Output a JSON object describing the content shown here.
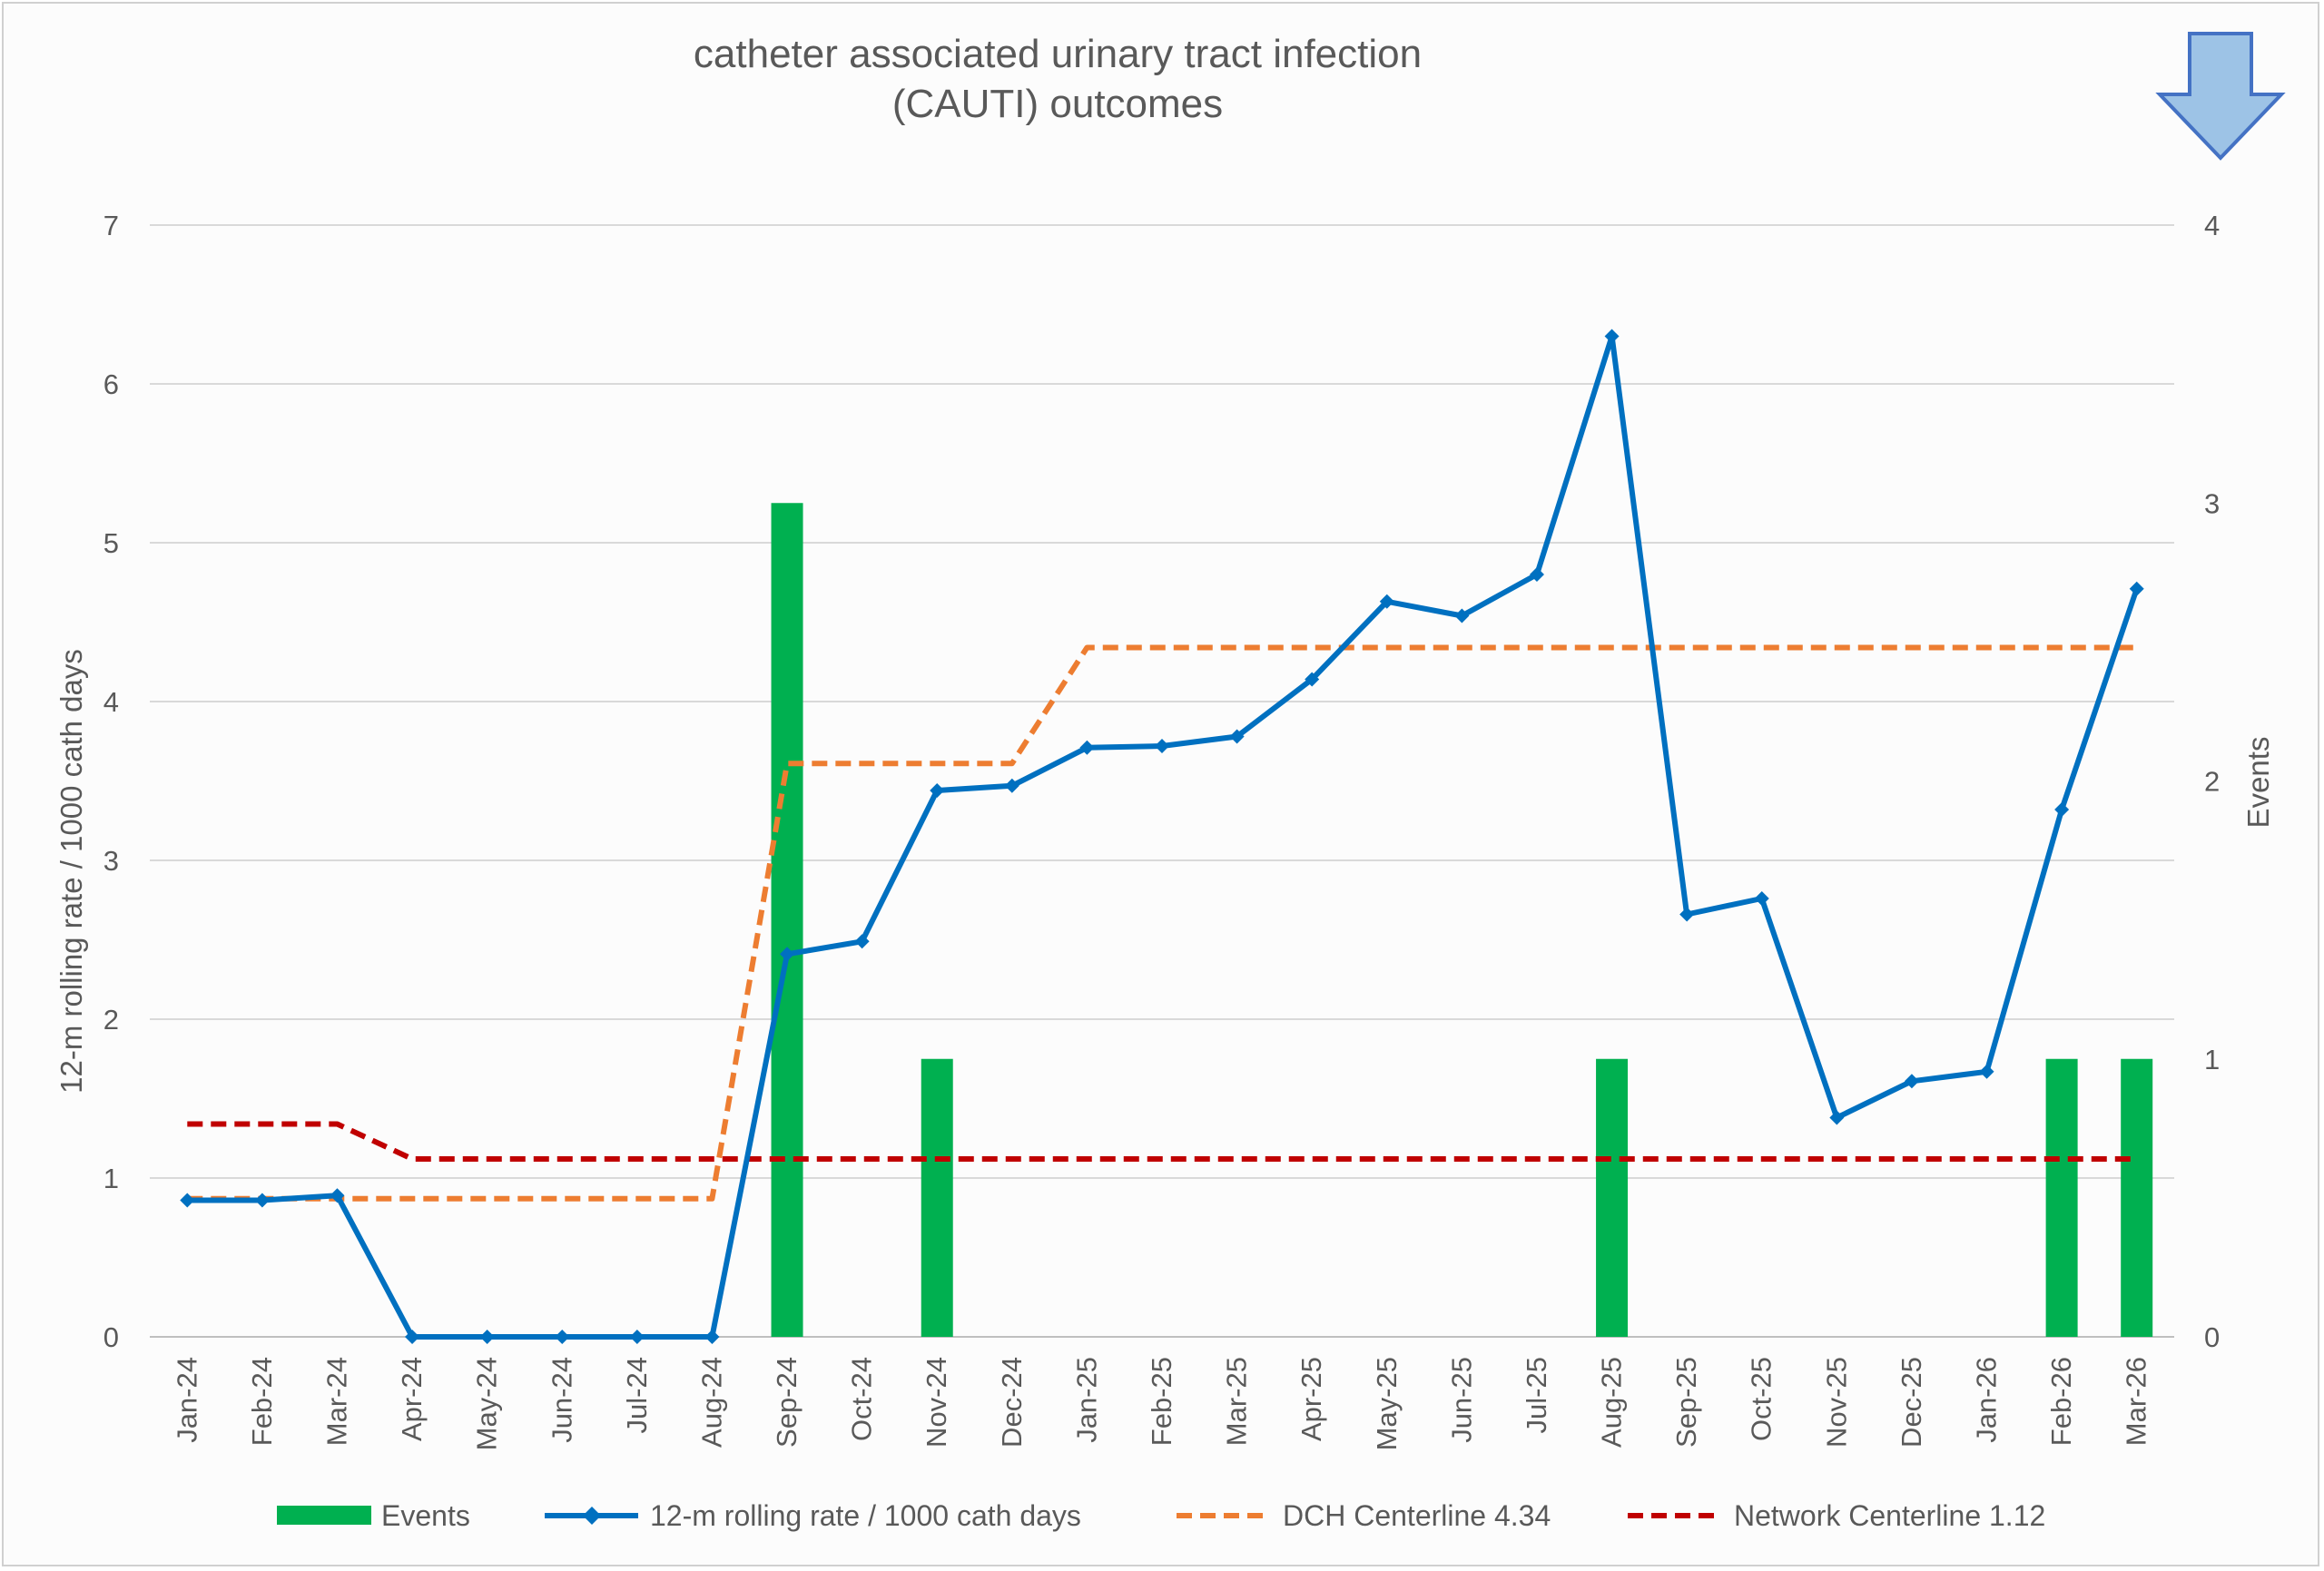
{
  "chart_data": {
    "type": "bar",
    "title_lines": [
      "catheter associated urinary tract infection",
      "(CAUTI) outcomes"
    ],
    "categories": [
      "Jan-24",
      "Feb-24",
      "Mar-24",
      "Apr-24",
      "May-24",
      "Jun-24",
      "Jul-24",
      "Aug-24",
      "Sep-24",
      "Oct-24",
      "Nov-24",
      "Dec-24",
      "Jan-25",
      "Feb-25",
      "Mar-25",
      "Apr-25",
      "May-25",
      "Jun-25",
      "Jul-25",
      "Aug-25",
      "Sep-25",
      "Oct-25",
      "Nov-25",
      "Dec-25",
      "Jan-26",
      "Feb-26",
      "Mar-26"
    ],
    "left_axis": {
      "label": "12-m rolling rate / 1000 cath days",
      "ylim": [
        0,
        7
      ],
      "ticks": [
        "0",
        "1",
        "2",
        "3",
        "4",
        "5",
        "6",
        "7"
      ]
    },
    "right_axis": {
      "label": "Events",
      "ylim": [
        0,
        4
      ],
      "ticks": [
        "0",
        "1",
        "2",
        "3",
        "4"
      ]
    },
    "grid": true,
    "legend_position": "bottom",
    "series": [
      {
        "name": "Events",
        "kind": "bar",
        "axis": "right",
        "color": "#00b050",
        "values": [
          0,
          0,
          0,
          0,
          0,
          0,
          0,
          0,
          3,
          0,
          1,
          0,
          0,
          0,
          0,
          0,
          0,
          0,
          0,
          1,
          0,
          0,
          0,
          0,
          0,
          1,
          1
        ]
      },
      {
        "name": "12-m rolling rate / 1000 cath days",
        "kind": "line",
        "axis": "left",
        "color": "#0070c0",
        "marker": "diamond",
        "values": [
          0.86,
          0.86,
          0.89,
          0,
          0,
          0,
          0,
          0,
          2.41,
          2.49,
          3.44,
          3.47,
          3.71,
          3.72,
          3.78,
          4.14,
          4.63,
          4.54,
          4.8,
          6.3,
          2.66,
          2.76,
          1.38,
          1.61,
          1.67,
          3.32,
          4.71
        ]
      },
      {
        "name": "DCH Centerline 4.34",
        "kind": "line",
        "axis": "left",
        "color": "#ed7d31",
        "dash": "dashed",
        "values": [
          0.87,
          0.87,
          0.87,
          0.87,
          0.87,
          0.87,
          0.87,
          0.87,
          3.61,
          3.61,
          3.61,
          3.61,
          4.34,
          4.34,
          4.34,
          4.34,
          4.34,
          4.34,
          4.34,
          4.34,
          4.34,
          4.34,
          4.34,
          4.34,
          4.34,
          4.34,
          4.34
        ]
      },
      {
        "name": "Network Centerline 1.12",
        "kind": "line",
        "axis": "left",
        "color": "#c00000",
        "dash": "dashed",
        "values": [
          1.34,
          1.34,
          1.34,
          1.12,
          1.12,
          1.12,
          1.12,
          1.12,
          1.12,
          1.12,
          1.12,
          1.12,
          1.12,
          1.12,
          1.12,
          1.12,
          1.12,
          1.12,
          1.12,
          1.12,
          1.12,
          1.12,
          1.12,
          1.12,
          1.12,
          1.12,
          1.12
        ]
      }
    ],
    "indicator": {
      "name": "desired-direction",
      "direction": "down",
      "color": "#9dc3e6"
    }
  }
}
